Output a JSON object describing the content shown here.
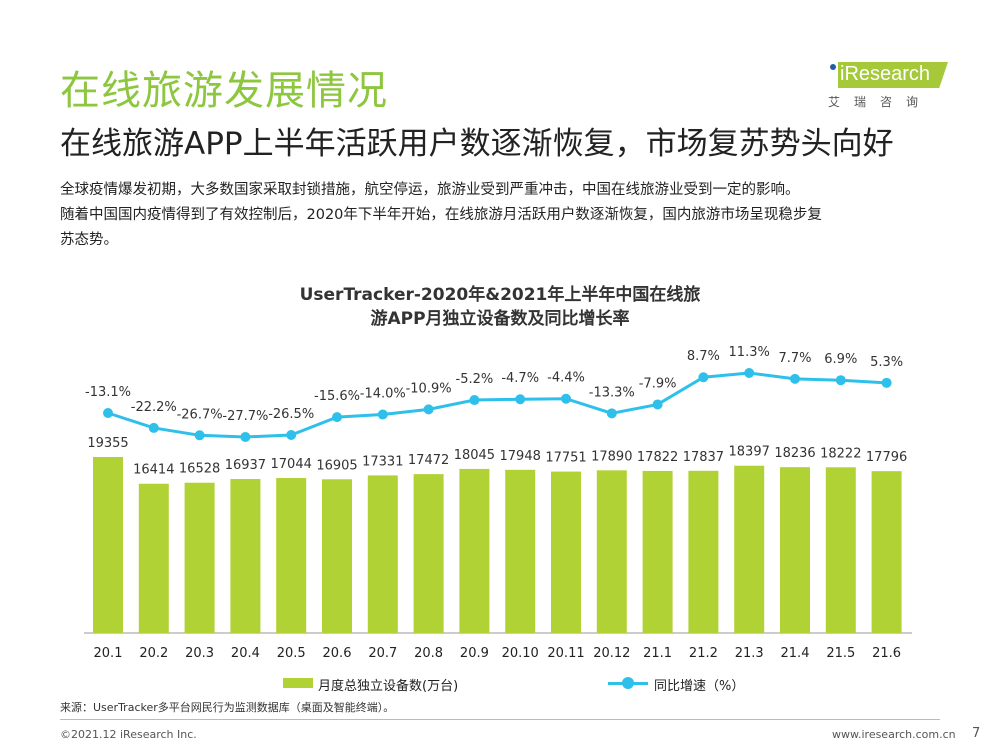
{
  "header": {
    "title": "在线旅游发展情况",
    "subtitle": "在线旅游APP上半年活跃用户数逐渐恢复，市场复苏势头向好"
  },
  "description": [
    "全球疫情爆发初期，大多数国家采取封锁措施，航空停运，旅游业受到严重冲击，中国在线旅游业受到一定的影响。",
    "随着中国国内疫情得到了有效控制后，2020年下半年开始，在线旅游月活跃用户数逐渐恢复，国内旅游市场呈现稳步复",
    "苏态势。"
  ],
  "logo": {
    "text": "iResearch",
    "cn": "艾瑞咨询"
  },
  "chart_data": {
    "type": "bar+line",
    "title_lines": [
      "UserTracker-2020年&2021年上半年中国在线旅",
      "游APP月独立设备数及同比增长率"
    ],
    "categories": [
      "20.1",
      "20.2",
      "20.3",
      "20.4",
      "20.5",
      "20.6",
      "20.7",
      "20.8",
      "20.9",
      "20.10",
      "20.11",
      "20.12",
      "21.1",
      "21.2",
      "21.3",
      "21.4",
      "21.5",
      "21.6"
    ],
    "series": [
      {
        "name": "月度总独立设备数(万台)",
        "type": "bar",
        "color": "#b1d235",
        "values": [
          19355,
          16414,
          16528,
          16937,
          17044,
          16905,
          17331,
          17472,
          18045,
          17948,
          17751,
          17890,
          17822,
          17837,
          18397,
          18236,
          18222,
          17796
        ]
      },
      {
        "name": "同比增速（%）",
        "type": "line",
        "color": "#2ec0ea",
        "values": [
          -13.1,
          -22.2,
          -26.7,
          -27.7,
          -26.5,
          -15.6,
          -14.0,
          -10.9,
          -5.2,
          -4.7,
          -4.4,
          -13.3,
          -7.9,
          8.7,
          11.3,
          7.7,
          6.9,
          5.3
        ]
      }
    ],
    "legend": "bottom"
  },
  "footer": {
    "source": "来源：UserTracker多平台网民行为监测数据库（桌面及智能终端）。",
    "copyright": "©2021.12 iResearch Inc.",
    "site": "www.iresearch.com.cn",
    "page": "7"
  }
}
